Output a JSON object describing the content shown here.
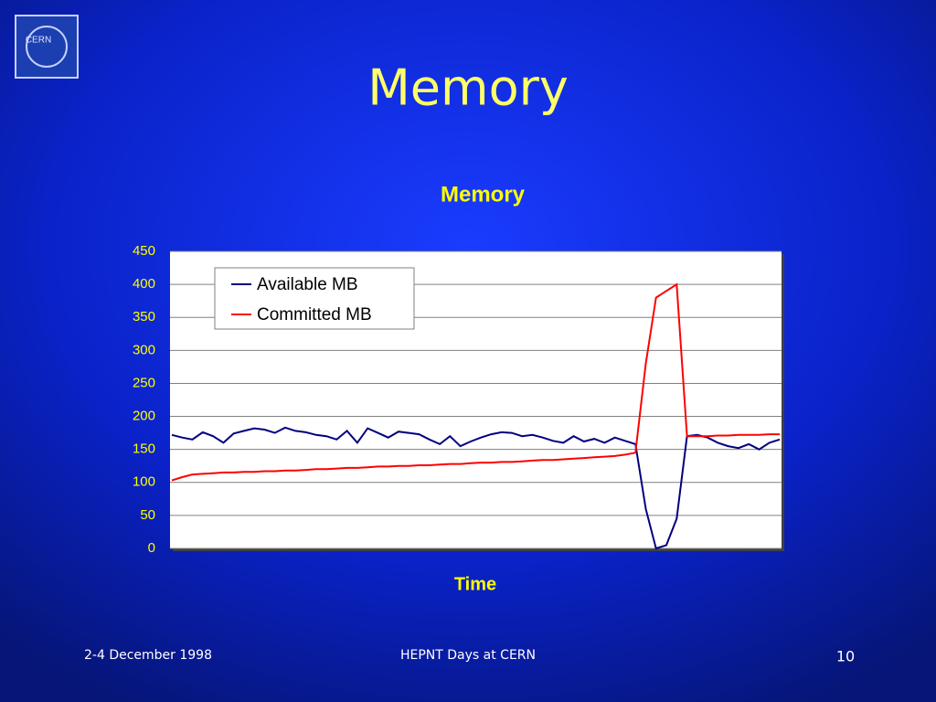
{
  "logo": "CERN",
  "slide_title": "Memory",
  "chart_data": {
    "type": "line",
    "title": "Memory",
    "x_label": "Time",
    "categories": [
      null,
      null,
      null,
      null,
      null,
      null,
      null,
      null,
      null,
      null,
      null,
      null,
      null,
      null,
      null,
      null,
      null,
      null,
      null,
      null,
      null,
      null,
      null,
      null,
      null,
      null,
      null,
      null,
      null,
      null,
      null,
      null,
      null,
      null,
      null,
      null,
      null,
      null,
      null,
      null,
      null,
      null,
      null,
      null,
      null,
      null,
      null,
      null,
      null,
      null,
      null,
      null,
      null,
      null,
      null,
      null,
      null,
      null,
      null,
      null
    ],
    "series": [
      {
        "name": "Available MB",
        "color": "#000080",
        "values": [
          172,
          168,
          165,
          176,
          170,
          160,
          174,
          178,
          182,
          180,
          175,
          183,
          178,
          176,
          172,
          170,
          165,
          178,
          160,
          182,
          175,
          168,
          177,
          175,
          173,
          165,
          158,
          170,
          155,
          162,
          168,
          173,
          176,
          175,
          170,
          172,
          168,
          163,
          160,
          170,
          162,
          166,
          160,
          168,
          163,
          158,
          60,
          0,
          5,
          45,
          170,
          172,
          168,
          160,
          155,
          152,
          158,
          150,
          160,
          165
        ]
      },
      {
        "name": "Committed MB",
        "color": "#ff0000",
        "values": [
          103,
          108,
          112,
          113,
          114,
          115,
          115,
          116,
          116,
          117,
          117,
          118,
          118,
          119,
          120,
          120,
          121,
          122,
          122,
          123,
          124,
          124,
          125,
          125,
          126,
          126,
          127,
          128,
          128,
          129,
          130,
          130,
          131,
          131,
          132,
          133,
          134,
          134,
          135,
          136,
          137,
          138,
          139,
          140,
          142,
          145,
          280,
          380,
          390,
          400,
          170,
          170,
          170,
          171,
          171,
          172,
          172,
          172,
          173,
          173
        ]
      }
    ],
    "ylim": [
      0,
      450
    ],
    "yticks": [
      0,
      50,
      100,
      150,
      200,
      250,
      300,
      350,
      400,
      450
    ],
    "grid": true
  },
  "footer": {
    "left": "2-4 December 1998",
    "center": "HEPNT Days at CERN",
    "right": "10"
  }
}
